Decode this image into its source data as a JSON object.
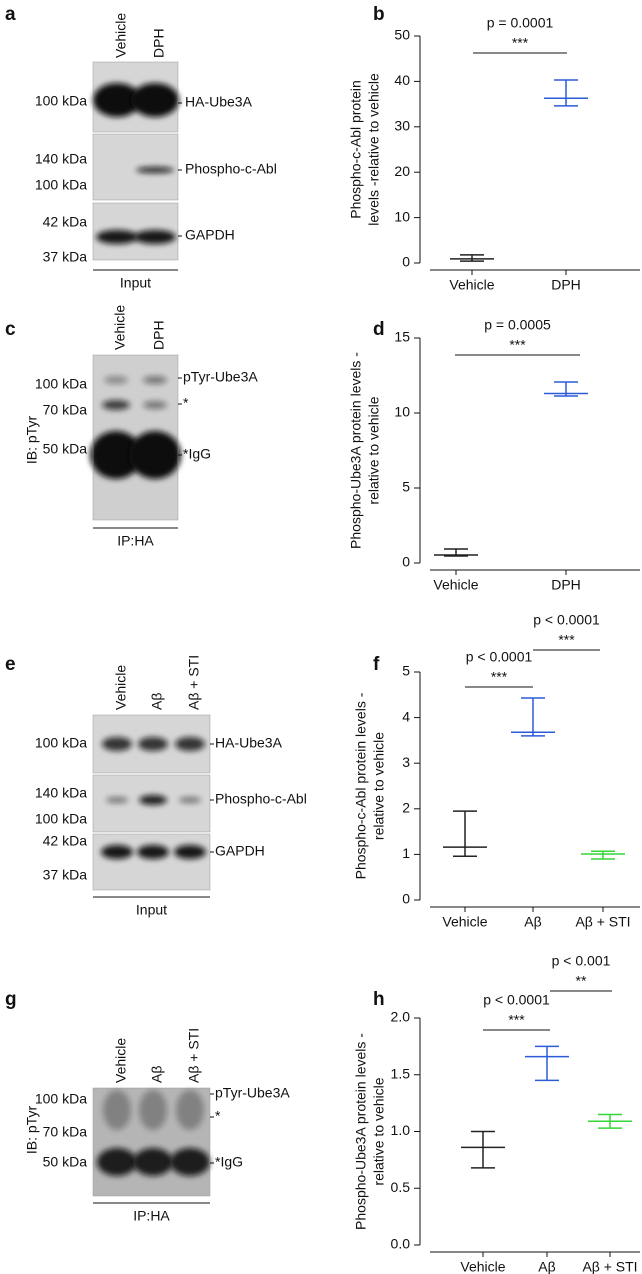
{
  "chart_data": [
    {
      "type": "range",
      "panel_label": "b",
      "ylabel": [
        "Phospho-c-Abl protein",
        "levels -relative to vehicle"
      ],
      "categories": [
        "Vehicle",
        "DPH"
      ],
      "values": [
        0.9,
        36.3
      ],
      "low": [
        0.4,
        34.6
      ],
      "high": [
        1.8,
        40.3
      ],
      "colors": [
        "#222222",
        "#2b5bd7"
      ],
      "ylim": [
        0,
        50
      ],
      "yticks": [
        0,
        10,
        20,
        30,
        40,
        50
      ],
      "annotations": [
        {
          "p": "p = 0.0001",
          "stars": "***"
        }
      ]
    },
    {
      "type": "range",
      "panel_label": "d",
      "ylabel": [
        "Phospho-Ube3A protein levels -",
        "relative to vehicle"
      ],
      "categories": [
        "Vehicle",
        "DPH"
      ],
      "values": [
        0.53,
        11.3
      ],
      "low": [
        0.47,
        11.13
      ],
      "high": [
        0.93,
        12.07
      ],
      "colors": [
        "#222222",
        "#2b5bd7"
      ],
      "ylim": [
        0,
        15
      ],
      "yticks": [
        0,
        5,
        10,
        15
      ],
      "annotations": [
        {
          "p": "p = 0.0005",
          "stars": "***"
        }
      ]
    },
    {
      "type": "range",
      "panel_label": "f",
      "ylabel": [
        "Phospho-c-Abl protein levels -",
        "relative to vehicle"
      ],
      "categories": [
        "Vehicle",
        "Aβ",
        "Aβ + STI"
      ],
      "values": [
        1.16,
        3.68,
        1.01
      ],
      "low": [
        0.96,
        3.6,
        0.9
      ],
      "high": [
        1.95,
        4.43,
        1.07
      ],
      "colors": [
        "#222222",
        "#2b5bd7",
        "#36d636"
      ],
      "ylim": [
        0,
        5
      ],
      "yticks": [
        0,
        1,
        2,
        3,
        4,
        5
      ],
      "annotations": [
        {
          "p": "p < 0.0001",
          "stars": "***"
        },
        {
          "p": "p < 0.0001",
          "stars": "***"
        }
      ]
    },
    {
      "type": "range",
      "panel_label": "h",
      "ylabel": [
        "Phospho-Ube3A protein levels -",
        "relative to vehicle"
      ],
      "categories": [
        "Vehicle",
        "Aβ",
        "Aβ + STI"
      ],
      "values": [
        0.86,
        1.66,
        1.09
      ],
      "low": [
        0.68,
        1.45,
        1.03
      ],
      "high": [
        1.0,
        1.75,
        1.15
      ],
      "colors": [
        "#222222",
        "#2b5bd7",
        "#36d636"
      ],
      "ylim": [
        0,
        2
      ],
      "yticks": [
        {
          "value": 0,
          "label": "0.0"
        },
        {
          "value": 0.5,
          "label": "0.5"
        },
        {
          "value": 1,
          "label": "1.0"
        },
        {
          "value": 1.5,
          "label": "1.5"
        },
        {
          "value": 2,
          "label": "2.0"
        }
      ],
      "annotations": [
        {
          "p": "p < 0.0001",
          "stars": "***"
        },
        {
          "p": "p < 0.001",
          "stars": "**"
        }
      ]
    }
  ],
  "blots": [
    {
      "panel_label": "a",
      "lanes": [
        "Vehicle",
        "DPH"
      ],
      "markers": [
        "100 kDa",
        "140 kDa",
        "100 kDa",
        "42 kDa",
        "37 kDa"
      ],
      "bands": [
        "HA-Ube3A",
        "Phospho-c-Abl",
        "GAPDH"
      ],
      "footer": "Input"
    },
    {
      "panel_label": "c",
      "side_label": "IB: pTyr",
      "lanes": [
        "Vehicle",
        "DPH"
      ],
      "markers": [
        "100 kDa",
        "70 kDa",
        "50 kDa"
      ],
      "bands": [
        "pTyr-Ube3A",
        "*",
        "*IgG"
      ],
      "footer": "IP:HA"
    },
    {
      "panel_label": "e",
      "lanes": [
        "Vehicle",
        "Aβ",
        "Aβ + STI"
      ],
      "markers": [
        "100 kDa",
        "140 kDa",
        "100 kDa",
        "42 kDa",
        "37 kDa"
      ],
      "bands": [
        "HA-Ube3A",
        "Phospho-c-Abl",
        "GAPDH"
      ],
      "footer": "Input"
    },
    {
      "panel_label": "g",
      "side_label": "IB: pTyr",
      "lanes": [
        "Vehicle",
        "Aβ",
        "Aβ + STI"
      ],
      "markers": [
        "100 kDa",
        "70 kDa",
        "50 kDa"
      ],
      "bands": [
        "pTyr-Ube3A",
        "*",
        "*IgG"
      ],
      "footer": "IP:HA"
    }
  ]
}
